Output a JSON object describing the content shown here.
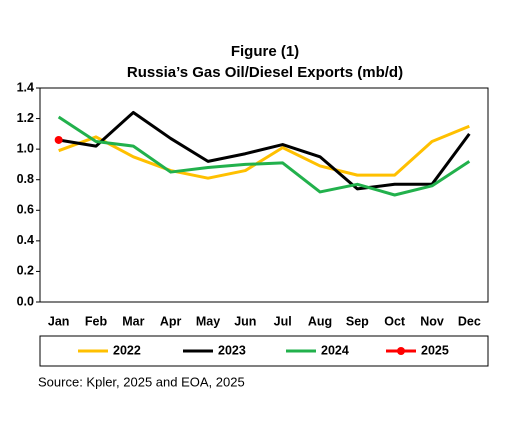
{
  "chart_data": {
    "type": "line",
    "title": "Figure (1)",
    "subtitle": "Russia’s Gas Oil/Diesel Exports  (mb/d)",
    "categories": [
      "Jan",
      "Feb",
      "Mar",
      "Apr",
      "May",
      "Jun",
      "Jul",
      "Aug",
      "Sep",
      "Oct",
      "Nov",
      "Dec"
    ],
    "series": [
      {
        "name": "2022",
        "color": "#ffc000",
        "values": [
          0.99,
          1.08,
          0.95,
          0.86,
          0.81,
          0.86,
          1.01,
          0.89,
          0.83,
          0.83,
          1.05,
          1.15
        ]
      },
      {
        "name": "2023",
        "color": "#000000",
        "values": [
          1.06,
          1.02,
          1.24,
          1.07,
          0.92,
          0.97,
          1.03,
          0.95,
          0.74,
          0.77,
          0.77,
          1.1
        ]
      },
      {
        "name": "2024",
        "color": "#22b14c",
        "values": [
          1.21,
          1.05,
          1.02,
          0.85,
          0.88,
          0.9,
          0.91,
          0.72,
          0.77,
          0.7,
          0.76,
          0.92
        ]
      },
      {
        "name": "2025",
        "color": "#ff0000",
        "marker": true,
        "values": [
          1.06,
          null,
          null,
          null,
          null,
          null,
          null,
          null,
          null,
          null,
          null,
          null
        ]
      }
    ],
    "ylim": [
      0,
      1.4
    ],
    "yticks": [
      {
        "value": 0,
        "label": "0.0"
      },
      {
        "value": 0.2,
        "label": "0.2"
      },
      {
        "value": 0.4,
        "label": "0.4"
      },
      {
        "value": 0.6,
        "label": "0.6"
      },
      {
        "value": 0.8,
        "label": "0.8"
      },
      {
        "value": 1.0,
        "label": "1.0"
      },
      {
        "value": 1.2,
        "label": "1.2"
      },
      {
        "value": 1.4,
        "label": "1.4"
      }
    ],
    "grid": false,
    "legend": "bottom",
    "source": "Source: Kpler, 2025 and EOA, 2025"
  }
}
